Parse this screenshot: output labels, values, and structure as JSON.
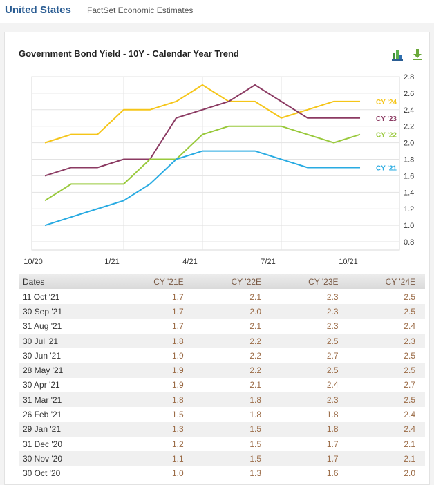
{
  "header": {
    "country": "United States",
    "source": "FactSet Economic Estimates"
  },
  "chart_title": "Government Bond Yield - 10Y - Calendar Year Trend",
  "toolbar": {
    "chart_icon": "bar-chart-icon",
    "download_icon": "download-icon"
  },
  "chart_data": {
    "type": "line",
    "title": "Government Bond Yield - 10Y - Calendar Year Trend",
    "xlabel": "",
    "ylabel": "",
    "x": [
      "10/20",
      "11/20",
      "12/20",
      "1/21",
      "2/21",
      "3/21",
      "4/21",
      "5/21",
      "6/21",
      "7/21",
      "8/21",
      "9/21",
      "10/21"
    ],
    "x_tick_labels": [
      "10/20",
      "1/21",
      "4/21",
      "7/21",
      "10/21"
    ],
    "y_ticks": [
      "2.8",
      "2.6",
      "2.4",
      "2.2",
      "2.0",
      "1.8",
      "1.6",
      "1.4",
      "1.2",
      "1.0",
      "0.8"
    ],
    "ylim": [
      0.7,
      2.8
    ],
    "y_axis_side": "right",
    "grid": true,
    "legend": "inline-right",
    "series": [
      {
        "name": "CY '24",
        "color": "#f5c518",
        "values": [
          2.0,
          2.1,
          2.1,
          2.4,
          2.4,
          2.5,
          2.7,
          2.5,
          2.5,
          2.3,
          2.4,
          2.5,
          2.5
        ]
      },
      {
        "name": "CY '23",
        "color": "#8b3a62",
        "values": [
          1.6,
          1.7,
          1.7,
          1.8,
          1.8,
          2.3,
          2.4,
          2.5,
          2.7,
          2.5,
          2.3,
          2.3,
          2.3
        ]
      },
      {
        "name": "CY '22",
        "color": "#99c93c",
        "values": [
          1.3,
          1.5,
          1.5,
          1.5,
          1.8,
          1.8,
          2.1,
          2.2,
          2.2,
          2.2,
          2.1,
          2.0,
          2.1
        ]
      },
      {
        "name": "CY '21",
        "color": "#29abe2",
        "values": [
          1.0,
          1.1,
          1.2,
          1.3,
          1.5,
          1.8,
          1.9,
          1.9,
          1.9,
          1.8,
          1.7,
          1.7,
          1.7
        ]
      }
    ]
  },
  "table": {
    "headers": [
      "Dates",
      "CY '21E",
      "CY '22E",
      "CY '23E",
      "CY '24E"
    ],
    "rows": [
      [
        "11 Oct '21",
        "1.7",
        "2.1",
        "2.3",
        "2.5"
      ],
      [
        "30 Sep '21",
        "1.7",
        "2.0",
        "2.3",
        "2.5"
      ],
      [
        "31 Aug '21",
        "1.7",
        "2.1",
        "2.3",
        "2.4"
      ],
      [
        "30 Jul '21",
        "1.8",
        "2.2",
        "2.5",
        "2.3"
      ],
      [
        "30 Jun '21",
        "1.9",
        "2.2",
        "2.7",
        "2.5"
      ],
      [
        "28 May '21",
        "1.9",
        "2.2",
        "2.5",
        "2.5"
      ],
      [
        "30 Apr '21",
        "1.9",
        "2.1",
        "2.4",
        "2.7"
      ],
      [
        "31 Mar '21",
        "1.8",
        "1.8",
        "2.3",
        "2.5"
      ],
      [
        "26 Feb '21",
        "1.5",
        "1.8",
        "1.8",
        "2.4"
      ],
      [
        "29 Jan '21",
        "1.3",
        "1.5",
        "1.8",
        "2.4"
      ],
      [
        "31 Dec '20",
        "1.2",
        "1.5",
        "1.7",
        "2.1"
      ],
      [
        "30 Nov '20",
        "1.1",
        "1.5",
        "1.7",
        "2.1"
      ],
      [
        "30 Oct '20",
        "1.0",
        "1.3",
        "1.6",
        "2.0"
      ]
    ]
  }
}
